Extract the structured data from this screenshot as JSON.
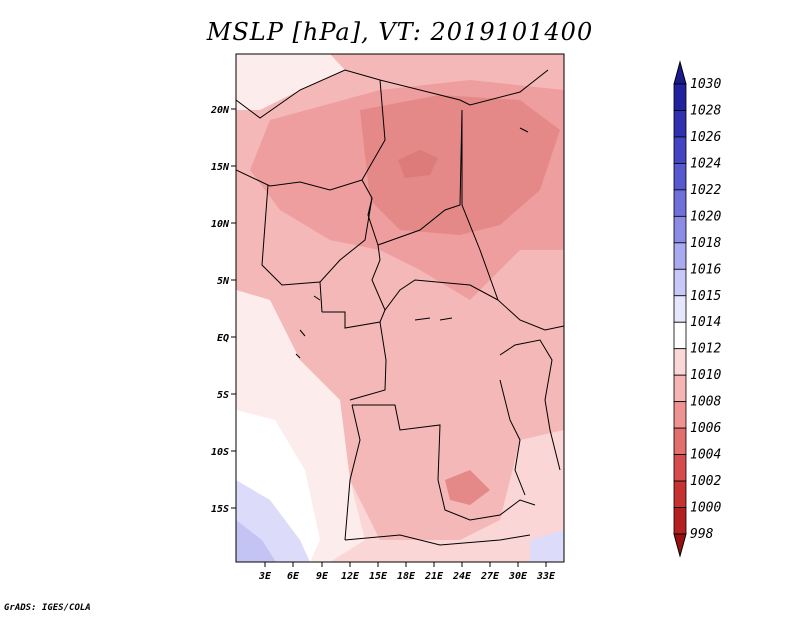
{
  "title": "MSLP [hPa], VT: 2019101400",
  "credit": "GrADS: IGES/COLA",
  "map": {
    "lat_labels": [
      "20N",
      "15N",
      "10N",
      "5N",
      "EQ",
      "5S",
      "10S",
      "15S"
    ],
    "lon_labels": [
      "3E",
      "6E",
      "9E",
      "12E",
      "15E",
      "18E",
      "21E",
      "24E",
      "27E",
      "30E",
      "33E"
    ],
    "colors": {
      "c1014": "#fdecec",
      "c1012": "#fad6d6",
      "c1010": "#f4b8b8",
      "c1008": "#ee9e9e",
      "c1006": "#e48888",
      "c1015": "#dcdcfa",
      "c1016": "#c4c4f4",
      "white": "#ffffff"
    }
  },
  "colorbar": {
    "levels": [
      "1030",
      "1028",
      "1026",
      "1024",
      "1022",
      "1020",
      "1018",
      "1016",
      "1015",
      "1014",
      "1012",
      "1010",
      "1008",
      "1006",
      "1004",
      "1002",
      "1000",
      "998"
    ],
    "colors": [
      "#1a1a8c",
      "#22229e",
      "#3030b0",
      "#4444c4",
      "#5858d0",
      "#7070da",
      "#8c8ce6",
      "#aaaaf0",
      "#c8c8f8",
      "#e6e6fc",
      "#ffffff",
      "#fbd8d8",
      "#f6b4b4",
      "#ee9292",
      "#e26e6e",
      "#d64c4c",
      "#c63232",
      "#b42020",
      "#9a1010"
    ]
  }
}
